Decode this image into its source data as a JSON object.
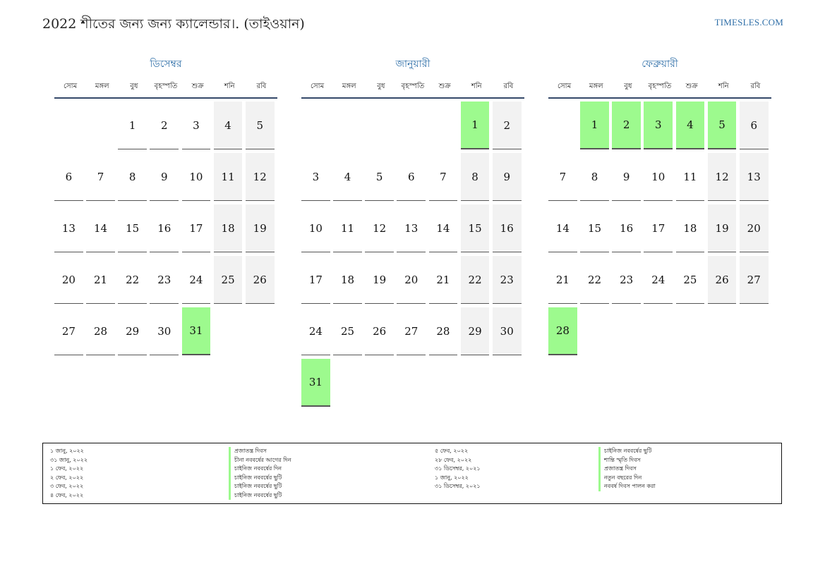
{
  "title": "2022 শীতের জন্য জন্য ক্যালেন্ডার।. (তাইওয়ান)",
  "brand": "TIMESLES.COM",
  "weekdays": [
    "সোম",
    "মঙ্গল",
    "বুধ",
    "বৃহস্পতি",
    "শুক্র",
    "শনি",
    "রবি"
  ],
  "months": [
    {
      "name": "ডিসেম্বর",
      "weeks": [
        [
          "",
          "",
          "1",
          "2",
          "3",
          "4",
          "5"
        ],
        [
          "6",
          "7",
          "8",
          "9",
          "10",
          "11",
          "12"
        ],
        [
          "13",
          "14",
          "15",
          "16",
          "17",
          "18",
          "19"
        ],
        [
          "20",
          "21",
          "22",
          "23",
          "24",
          "25",
          "26"
        ],
        [
          "27",
          "28",
          "29",
          "30",
          "31",
          "",
          ""
        ]
      ],
      "holidays": [
        "31"
      ]
    },
    {
      "name": "জানুয়ারী",
      "weeks": [
        [
          "",
          "",
          "",
          "",
          "",
          "1",
          "2"
        ],
        [
          "3",
          "4",
          "5",
          "6",
          "7",
          "8",
          "9"
        ],
        [
          "10",
          "11",
          "12",
          "13",
          "14",
          "15",
          "16"
        ],
        [
          "17",
          "18",
          "19",
          "20",
          "21",
          "22",
          "23"
        ],
        [
          "24",
          "25",
          "26",
          "27",
          "28",
          "29",
          "30"
        ],
        [
          "31",
          "",
          "",
          "",
          "",
          "",
          ""
        ]
      ],
      "holidays": [
        "1",
        "31"
      ]
    },
    {
      "name": "ফেব্রুয়ারী",
      "weeks": [
        [
          "",
          "1",
          "2",
          "3",
          "4",
          "5",
          "6"
        ],
        [
          "7",
          "8",
          "9",
          "10",
          "11",
          "12",
          "13"
        ],
        [
          "14",
          "15",
          "16",
          "17",
          "18",
          "19",
          "20"
        ],
        [
          "21",
          "22",
          "23",
          "24",
          "25",
          "26",
          "27"
        ],
        [
          "28",
          "",
          "",
          "",
          "",
          "",
          ""
        ]
      ],
      "holidays": [
        "1",
        "2",
        "3",
        "4",
        "5",
        "28"
      ]
    }
  ],
  "legend": {
    "left": [
      {
        "date": "১ জানু, ২০২২",
        "name": "প্রজাতন্ত্র দিবস"
      },
      {
        "date": "৩১ জানু, ২০২২",
        "name": "চীনা নববর্ষের আগের দিন"
      },
      {
        "date": "১ ফেব, ২০২২",
        "name": "চাইনিজ নববর্ষের দিন"
      },
      {
        "date": "২ ফেব, ২০২২",
        "name": "চাইনিজ নববর্ষের ছুটি"
      },
      {
        "date": "৩ ফেব, ২০২২",
        "name": "চাইনিজ নববর্ষের ছুটি"
      },
      {
        "date": "৪ ফেব, ২০২২",
        "name": "চাইনিজ নববর্ষের ছুটি"
      }
    ],
    "right": [
      {
        "date": "৫ ফেব, ২০২২",
        "name": "চাইনিজ নববর্ষের ছুটি"
      },
      {
        "date": "২৮ ফেব, ২০২২",
        "name": "শান্তি স্মৃতি দিবস"
      },
      {
        "date": "৩১ ডিসেম্বর, ২০২১",
        "name": "প্রজাতন্ত্র দিবস"
      },
      {
        "date": "১ জানু, ২০২২",
        "name": "নতুন বছরের দিন"
      },
      {
        "date": "৩১ ডিসেম্বর, ২০২১",
        "name": "নববর্ষ দিবস পালন করা"
      }
    ]
  },
  "colors": {
    "accent": "#2f6fa8",
    "holiday": "#9dfa8e",
    "weekend": "#f2f2f2",
    "rule": "#34496a"
  }
}
